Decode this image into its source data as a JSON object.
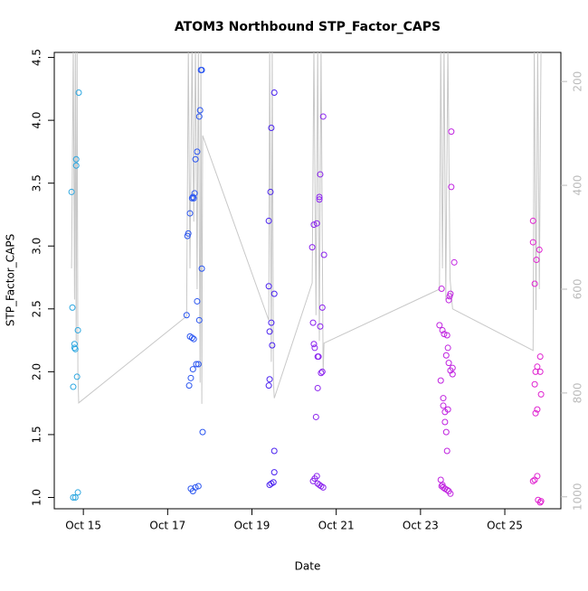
{
  "chart_data": {
    "type": "scatter",
    "title": "ATOM3 Northbound STP_Factor_CAPS",
    "x_label": "Date",
    "y_label": "STP_Factor_CAPS",
    "xlim": [
      14.31,
      26.33
    ],
    "xticks": [
      {
        "value": 15,
        "label": "Oct 15"
      },
      {
        "value": 17,
        "label": "Oct 17"
      },
      {
        "value": 19,
        "label": "Oct 19"
      },
      {
        "value": 21,
        "label": "Oct 21"
      },
      {
        "value": 23,
        "label": "Oct 23"
      },
      {
        "value": 25,
        "label": "Oct 25"
      }
    ],
    "ylim": [
      0.91,
      4.54
    ],
    "yticks": [
      {
        "value": 1,
        "label": "1.0"
      },
      1.5,
      {
        "value": 2,
        "label": "2.0"
      },
      2.5,
      {
        "value": 3,
        "label": "3.0"
      },
      3.5,
      {
        "value": 4,
        "label": "4.0"
      },
      4.5
    ],
    "y2lim": [
      1023,
      144
    ],
    "y2ticks": [
      200,
      400,
      600,
      800,
      1000
    ],
    "series": [
      {
        "color": "#2aa6e0",
        "x": [
          14.72,
          14.74,
          14.76,
          14.79,
          14.79,
          14.81,
          14.76,
          14.81,
          14.83,
          14.83,
          14.87,
          14.85,
          14.89,
          14.87
        ],
        "values": [
          3.43,
          2.51,
          1.88,
          2.22,
          2.19,
          2.18,
          1.0,
          1.0,
          3.64,
          3.69,
          2.33,
          1.96,
          4.22,
          1.04
        ]
      },
      {
        "color": "#2a55f0",
        "x": [
          17.45,
          17.47,
          17.49,
          17.51,
          17.53,
          17.53,
          17.55,
          17.58,
          17.58,
          17.6,
          17.6,
          17.62,
          17.64,
          17.62,
          17.66,
          17.68,
          17.7,
          17.7,
          17.73,
          17.75,
          17.75,
          17.77,
          17.79,
          17.81,
          17.81,
          17.83,
          17.55,
          17.6,
          17.66,
          17.73
        ],
        "values": [
          2.45,
          3.08,
          3.1,
          1.89,
          3.26,
          2.28,
          1.95,
          2.27,
          3.38,
          3.39,
          2.02,
          3.38,
          3.42,
          2.26,
          3.69,
          2.06,
          3.75,
          2.56,
          2.06,
          4.03,
          2.41,
          4.08,
          4.4,
          4.4,
          2.82,
          1.52,
          1.07,
          1.05,
          1.08,
          1.09
        ]
      },
      {
        "color": "#4a22f0",
        "x": [
          19.4,
          19.4,
          19.42,
          19.4,
          19.42,
          19.44,
          19.46,
          19.46,
          19.48,
          19.53,
          19.53,
          19.53,
          19.53,
          19.42,
          19.46,
          19.51
        ],
        "values": [
          3.2,
          2.68,
          2.32,
          1.89,
          1.94,
          3.43,
          3.94,
          2.39,
          2.21,
          2.62,
          4.22,
          1.37,
          1.2,
          1.1,
          1.11,
          1.12
        ]
      },
      {
        "color": "#8a22ee",
        "x": [
          20.43,
          20.45,
          20.47,
          20.47,
          20.49,
          20.52,
          20.54,
          20.56,
          20.56,
          20.58,
          20.6,
          20.6,
          20.62,
          20.62,
          20.64,
          20.67,
          20.67,
          20.69,
          20.71,
          20.45,
          20.49,
          20.54,
          20.56,
          20.6,
          20.64,
          20.69
        ],
        "values": [
          2.99,
          2.39,
          2.22,
          3.17,
          2.19,
          1.64,
          3.18,
          2.12,
          1.87,
          2.12,
          3.39,
          3.37,
          3.57,
          2.36,
          1.99,
          2.51,
          2.0,
          4.03,
          2.93,
          1.13,
          1.15,
          1.17,
          1.11,
          1.1,
          1.09,
          1.08
        ]
      },
      {
        "color": "#c022e0",
        "x": [
          23.45,
          23.48,
          23.5,
          23.52,
          23.54,
          23.54,
          23.56,
          23.58,
          23.58,
          23.61,
          23.61,
          23.63,
          23.65,
          23.63,
          23.65,
          23.67,
          23.67,
          23.69,
          23.71,
          23.71,
          23.73,
          23.73,
          23.76,
          23.8,
          23.76,
          23.48,
          23.5,
          23.54,
          23.58,
          23.63,
          23.67,
          23.71,
          23.52
        ],
        "values": [
          2.37,
          1.93,
          2.66,
          2.33,
          1.73,
          1.79,
          2.3,
          1.68,
          1.6,
          1.52,
          2.13,
          2.29,
          2.19,
          1.37,
          1.7,
          2.07,
          2.57,
          2.6,
          2.62,
          2.01,
          3.91,
          3.47,
          1.98,
          2.87,
          2.03,
          1.14,
          1.09,
          1.08,
          1.07,
          1.06,
          1.05,
          1.03,
          1.1
        ]
      },
      {
        "color": "#e022d0",
        "x": [
          25.67,
          25.67,
          25.71,
          25.73,
          25.75,
          25.77,
          25.82,
          25.84,
          25.84,
          25.86,
          25.71,
          25.73,
          25.77,
          25.67,
          25.71,
          25.77,
          25.79,
          25.86,
          25.84
        ],
        "values": [
          3.2,
          3.03,
          2.7,
          2.0,
          2.89,
          2.04,
          2.97,
          2.0,
          2.12,
          1.82,
          1.9,
          1.67,
          1.7,
          1.13,
          1.14,
          1.17,
          0.98,
          0.97,
          0.96
        ]
      },
      {
        "color": "#c8c8c8",
        "axis": "y2",
        "x": [
          14.72,
          14.76,
          14.79,
          14.81,
          14.83,
          14.85,
          14.87,
          14.89,
          17.45,
          17.49,
          17.53,
          17.58,
          17.62,
          17.66,
          17.7,
          17.73,
          17.77,
          17.79,
          17.81,
          17.83,
          19.4,
          19.42,
          19.46,
          19.48,
          19.51,
          19.53,
          20.43,
          20.47,
          20.52,
          20.56,
          20.6,
          20.64,
          20.69,
          20.71,
          23.45,
          23.48,
          23.52,
          23.56,
          23.6,
          23.65,
          23.7,
          23.76,
          25.67,
          25.7,
          25.74,
          25.78,
          25.82,
          25.86
        ],
        "values": [
          560,
          130,
          620,
          130,
          700,
          130,
          760,
          819,
          652,
          130,
          560,
          130,
          470,
          130,
          600,
          130,
          780,
          130,
          821,
          304,
          660,
          130,
          740,
          130,
          780,
          810,
          588,
          130,
          650,
          130,
          700,
          130,
          760,
          704,
          600,
          130,
          560,
          130,
          620,
          130,
          580,
          638,
          718,
          130,
          640,
          130,
          600,
          130
        ]
      }
    ]
  }
}
